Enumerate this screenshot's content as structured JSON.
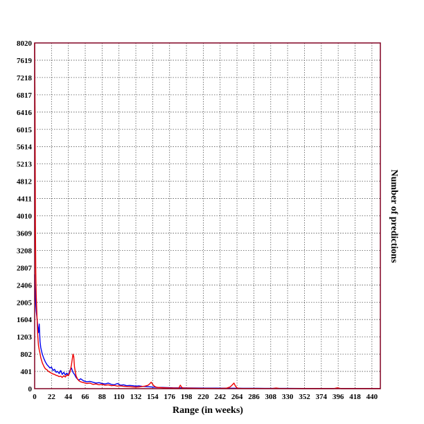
{
  "chart_data": {
    "type": "line",
    "title": "",
    "xlabel": "Range (in weeks)",
    "ylabel": "Number of predictions",
    "xlim": [
      0,
      451
    ],
    "ylim": [
      0,
      8020
    ],
    "x_ticks": [
      0,
      22,
      44,
      66,
      88,
      110,
      132,
      154,
      176,
      198,
      220,
      242,
      264,
      286,
      308,
      330,
      352,
      374,
      396,
      418,
      440
    ],
    "y_ticks": [
      0,
      401,
      802,
      1203,
      1604,
      2005,
      2406,
      2807,
      3208,
      3609,
      4010,
      4411,
      4812,
      5213,
      5614,
      6015,
      6416,
      6817,
      7218,
      7619,
      8020
    ],
    "grid": true,
    "legend": "none",
    "colors": {
      "frame": "#800020",
      "blue_series": "#0000ee",
      "red_series": "#ee0000",
      "grid": "#555555"
    },
    "series": [
      {
        "color": "#0000ee",
        "x": [
          0,
          1,
          2,
          3,
          4,
          5,
          6,
          7,
          8,
          10,
          12,
          14,
          16,
          18,
          20,
          22,
          24,
          26,
          28,
          30,
          32,
          34,
          36,
          38,
          40,
          42,
          44,
          46,
          48,
          50,
          52,
          54,
          56,
          58,
          60,
          64,
          68,
          72,
          76,
          80,
          84,
          88,
          92,
          96,
          100,
          104,
          108,
          112,
          116,
          120,
          124,
          128,
          132,
          136,
          140,
          144,
          148,
          152,
          156,
          160,
          166,
          172,
          180,
          190,
          200,
          212,
          224,
          236,
          248,
          260,
          272,
          290,
          310,
          330,
          350,
          370,
          390,
          410,
          430,
          451
        ],
        "y": [
          2650,
          2100,
          1800,
          1650,
          1450,
          1300,
          1500,
          1100,
          950,
          800,
          700,
          620,
          560,
          520,
          480,
          500,
          420,
          450,
          380,
          400,
          350,
          420,
          330,
          380,
          320,
          360,
          300,
          420,
          480,
          380,
          330,
          260,
          220,
          200,
          230,
          180,
          160,
          170,
          150,
          130,
          140,
          120,
          110,
          130,
          100,
          90,
          120,
          80,
          90,
          70,
          75,
          70,
          60,
          65,
          55,
          50,
          45,
          40,
          35,
          30,
          28,
          25,
          20,
          18,
          16,
          14,
          12,
          12,
          10,
          10,
          8,
          8,
          6,
          6,
          5,
          5,
          4,
          4,
          3,
          3
        ]
      },
      {
        "color": "#ee0000",
        "x": [
          0,
          0.5,
          1,
          1.5,
          2,
          3,
          4,
          5,
          6,
          7,
          8,
          10,
          12,
          14,
          16,
          18,
          20,
          22,
          24,
          26,
          28,
          30,
          32,
          34,
          36,
          38,
          40,
          42,
          44,
          46,
          48,
          50,
          51,
          52,
          54,
          56,
          58,
          60,
          64,
          68,
          72,
          76,
          80,
          84,
          88,
          92,
          96,
          100,
          104,
          108,
          112,
          116,
          120,
          124,
          128,
          132,
          136,
          140,
          144,
          148,
          150,
          152,
          154,
          156,
          158,
          160,
          164,
          168,
          172,
          176,
          180,
          184,
          188,
          190,
          192,
          194,
          198,
          204,
          210,
          220,
          230,
          240,
          250,
          255,
          258,
          260,
          262,
          264,
          266,
          270,
          280,
          290,
          300,
          310,
          315,
          320,
          330,
          340,
          350,
          360,
          370,
          380,
          390,
          395,
          400,
          410,
          420,
          430,
          440,
          451
        ],
        "y": [
          8020,
          6500,
          3800,
          2700,
          2200,
          1700,
          1250,
          1000,
          900,
          820,
          720,
          600,
          520,
          460,
          440,
          400,
          380,
          360,
          340,
          330,
          310,
          300,
          280,
          290,
          260,
          300,
          270,
          320,
          300,
          380,
          550,
          800,
          750,
          500,
          300,
          220,
          180,
          160,
          140,
          120,
          130,
          100,
          110,
          90,
          100,
          80,
          90,
          70,
          75,
          60,
          65,
          55,
          50,
          45,
          40,
          35,
          40,
          50,
          60,
          80,
          110,
          150,
          100,
          60,
          40,
          30,
          25,
          20,
          18,
          15,
          15,
          12,
          10,
          80,
          30,
          10,
          12,
          10,
          8,
          6,
          6,
          5,
          10,
          40,
          90,
          130,
          60,
          20,
          8,
          5,
          4,
          4,
          3,
          3,
          15,
          3,
          3,
          3,
          2,
          2,
          2,
          2,
          2,
          20,
          2,
          2,
          2,
          2,
          2,
          2
        ]
      }
    ]
  }
}
